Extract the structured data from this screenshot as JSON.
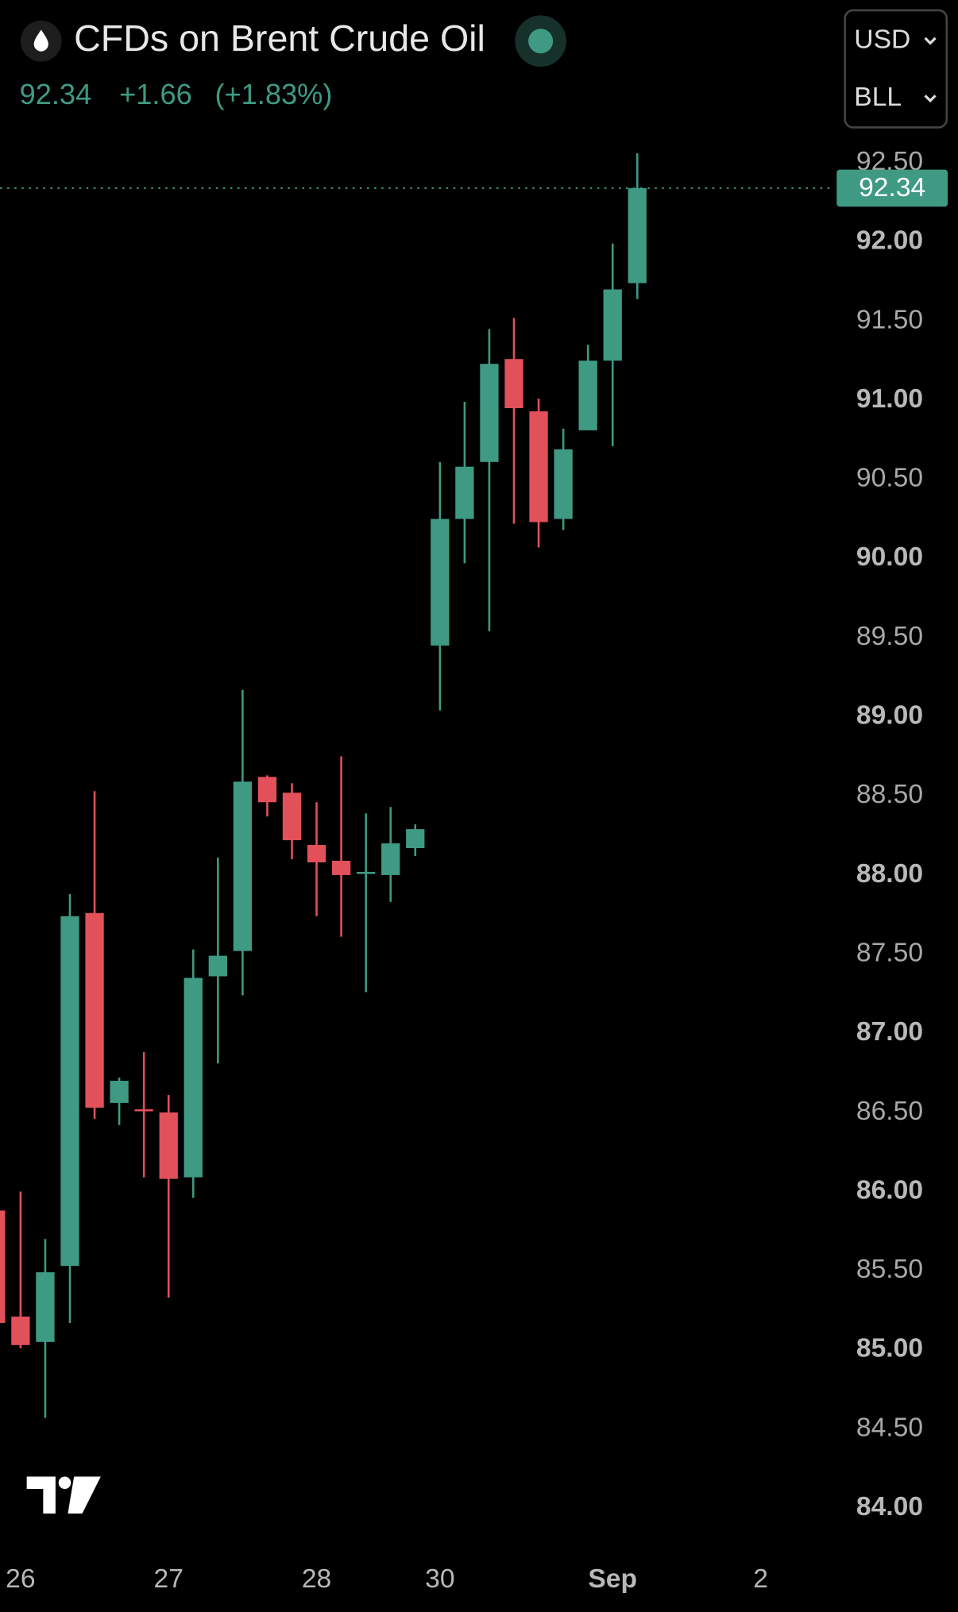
{
  "header": {
    "title": "CFDs on Brent Crude Oil",
    "price": "92.34",
    "change": "+1.66",
    "change_pct": "(+1.83%)",
    "currency": "USD",
    "unit": "BLL"
  },
  "chart_data": {
    "type": "candlestick",
    "categories": [
      null,
      "26",
      null,
      null,
      null,
      null,
      null,
      "27",
      null,
      null,
      null,
      null,
      null,
      "28",
      null,
      null,
      null,
      null,
      "30",
      null,
      null,
      null,
      null,
      null,
      null,
      "Sep",
      null,
      null,
      null,
      null,
      null,
      "2"
    ],
    "open": [
      85.88,
      85.21,
      85.05,
      85.53,
      87.76,
      86.56,
      86.52,
      86.5,
      86.09,
      87.36,
      87.52,
      88.62,
      88.52,
      88.19,
      88.09,
      88.01,
      88.0,
      88.17,
      89.45,
      90.25,
      90.61,
      91.26,
      90.93,
      90.25,
      90.81,
      91.25,
      91.74,
      null,
      null,
      null,
      null,
      null
    ],
    "high": [
      85.9,
      86.0,
      85.7,
      87.88,
      88.53,
      86.72,
      86.88,
      86.61,
      87.53,
      88.11,
      89.17,
      88.63,
      88.58,
      88.46,
      88.75,
      88.39,
      88.43,
      88.32,
      90.61,
      90.99,
      91.45,
      91.52,
      91.01,
      90.82,
      91.35,
      91.99,
      92.56,
      null,
      null,
      null,
      null,
      null
    ],
    "low": [
      85.1,
      85.01,
      84.57,
      85.17,
      86.46,
      86.42,
      86.09,
      85.33,
      85.96,
      86.81,
      87.24,
      88.37,
      88.1,
      87.74,
      87.61,
      87.26,
      87.83,
      88.12,
      89.04,
      89.97,
      89.54,
      90.22,
      90.07,
      90.18,
      90.81,
      90.71,
      91.64,
      null,
      null,
      null,
      null,
      null
    ],
    "close": [
      85.17,
      85.03,
      85.49,
      87.74,
      86.53,
      86.7,
      86.51,
      86.08,
      87.35,
      87.49,
      88.59,
      88.46,
      88.22,
      88.08,
      88.0,
      88.02,
      88.2,
      88.29,
      90.25,
      90.58,
      91.23,
      90.95,
      90.23,
      90.69,
      91.25,
      91.7,
      92.34,
      null,
      null,
      null,
      null,
      null
    ],
    "up_color": "#3f9a84",
    "down_color": "#e2505a",
    "last_price": 92.34,
    "ylim": [
      83.79,
      92.62
    ],
    "yticks": [
      {
        "value": 84,
        "label": "84.00"
      },
      {
        "value": 84.5,
        "label": "84.50"
      },
      {
        "value": 85,
        "label": "85.00"
      },
      {
        "value": 85.5,
        "label": "85.50"
      },
      {
        "value": 86,
        "label": "86.00"
      },
      {
        "value": 86.5,
        "label": "86.50"
      },
      {
        "value": 87,
        "label": "87.00"
      },
      {
        "value": 87.5,
        "label": "87.50"
      },
      {
        "value": 88,
        "label": "88.00"
      },
      {
        "value": 88.5,
        "label": "88.50"
      },
      {
        "value": 89,
        "label": "89.00"
      },
      {
        "value": 89.5,
        "label": "89.50"
      },
      {
        "value": 90,
        "label": "90.00"
      },
      {
        "value": 90.5,
        "label": "90.50"
      },
      {
        "value": 91,
        "label": "91.00"
      },
      {
        "value": 91.5,
        "label": "91.50"
      },
      {
        "value": 92,
        "label": "92.00"
      },
      {
        "value": 92.5,
        "label": "92.50"
      }
    ]
  }
}
